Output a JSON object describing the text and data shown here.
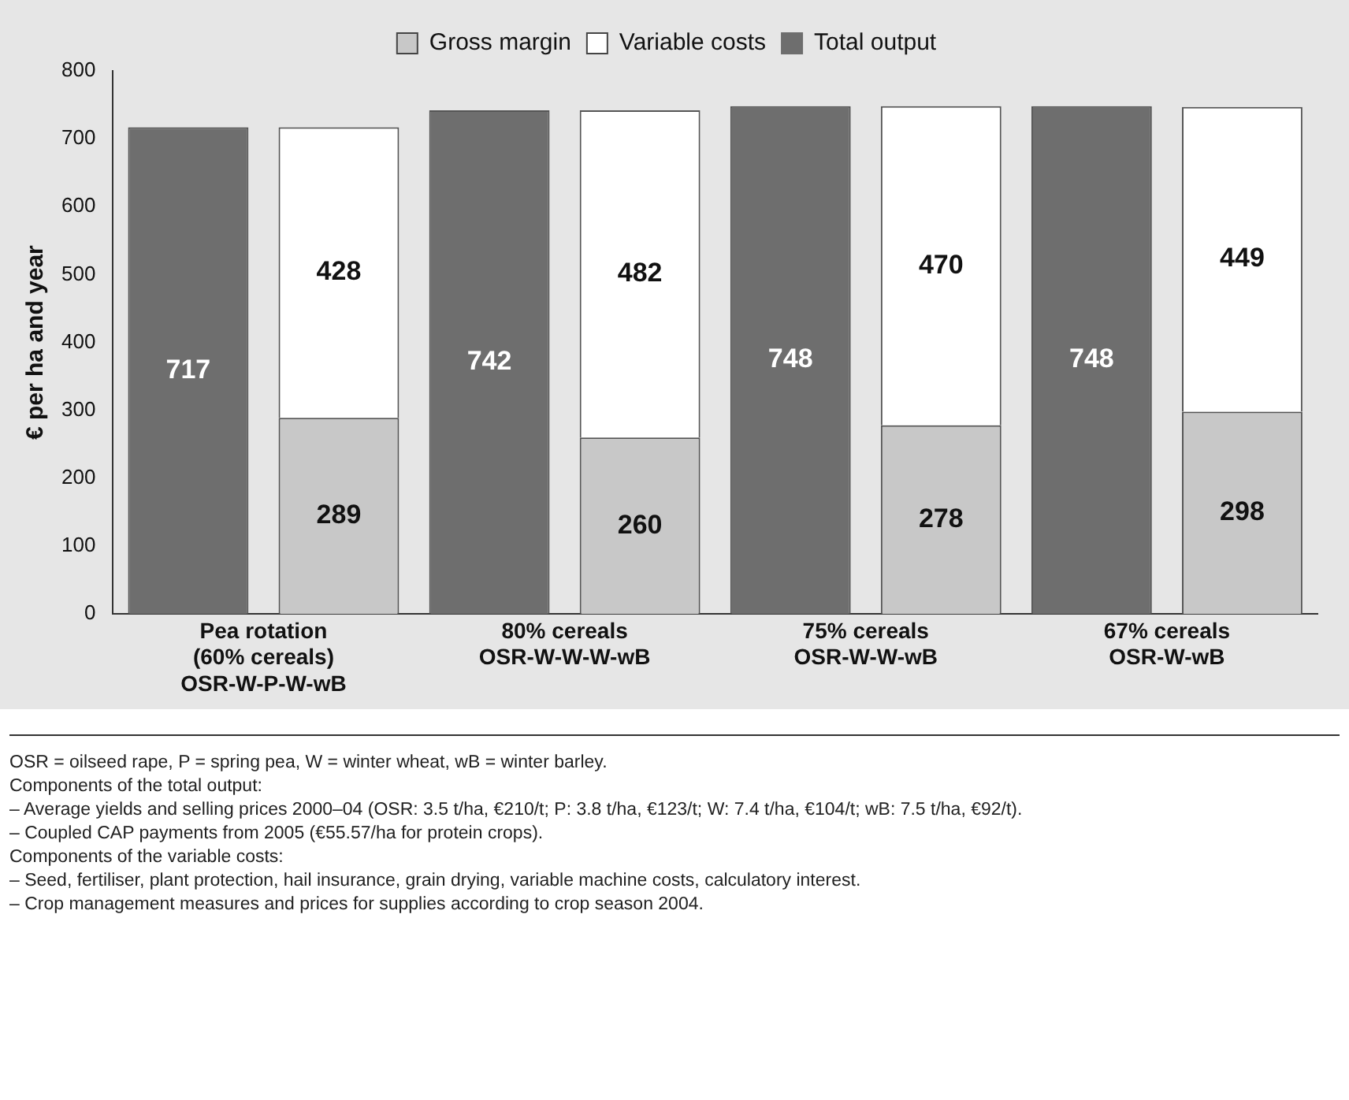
{
  "chart_data": {
    "type": "bar",
    "ylabel": "€ per ha and year",
    "categories": [
      "Pea rotation\n(60% cereals)\nOSR-W-P-W-wB",
      null,
      "80% cereals\nOSR-W-W-W-wB",
      null,
      "75% cereals\nOSR-W-W-wB",
      null,
      "67% cereals\nOSR-W-wB",
      null
    ],
    "series": [
      {
        "name": "Gross margin",
        "color": "#c8c8c8",
        "values": [
          null,
          289,
          null,
          260,
          null,
          278,
          null,
          298
        ]
      },
      {
        "name": "Variable costs",
        "color": "#ffffff",
        "values": [
          null,
          428,
          null,
          482,
          null,
          470,
          null,
          449
        ]
      },
      {
        "name": "Total output",
        "color": "#6e6e6e",
        "values": [
          717,
          null,
          742,
          null,
          748,
          null,
          748,
          null
        ]
      }
    ],
    "stacked": true,
    "ylim": [
      0,
      800
    ],
    "yticks": [
      0,
      100,
      200,
      300,
      400,
      500,
      600,
      700,
      800
    ],
    "grid": false,
    "legend": "top",
    "data_labels": true,
    "annotations": [
      "OSR = oilseed rape, P = spring pea, W = winter wheat, wB = winter barley.",
      "Components of the total output:",
      "– Average yields and selling prices 2000–04 (OSR: 3.5 t/ha, €210/t; P: 3.8 t/ha, €123/t; W: 7.4 t/ha, €104/t; wB: 7.5 t/ha, €92/t).",
      "– Coupled CAP payments from 2005  (€55.57/ha for protein crops).",
      "Components of the variable costs:",
      "– Seed, fertiliser, plant protection, hail insurance, grain drying, variable machine costs, calculatory interest.",
      "– Crop management measures and prices for supplies according to crop season 2004."
    ]
  }
}
